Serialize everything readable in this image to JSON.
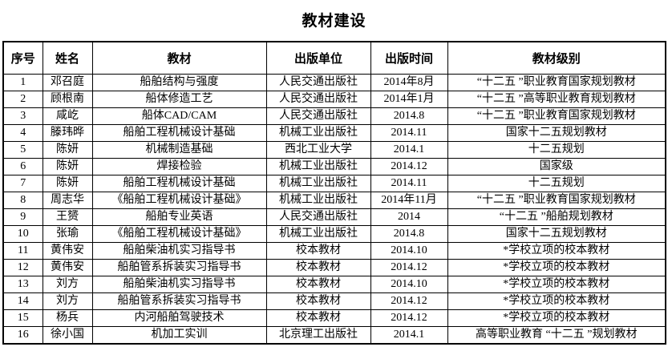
{
  "title": "教材建设",
  "colors": {
    "text": "#000000",
    "border": "#000000",
    "background": "#ffffff"
  },
  "table": {
    "headers": [
      "序号",
      "姓名",
      "教材",
      "出版单位",
      "出版时间",
      "教材级别"
    ],
    "rows": [
      [
        "1",
        "邓召庭",
        "船舶结构与强度",
        "人民交通出版社",
        "2014年8月",
        "“十二五 ”职业教育国家规划教材"
      ],
      [
        "2",
        "顾根南",
        "船体修造工艺",
        "人民交通出版社",
        "2014年1月",
        "“十二五 ”高等职业教育规划教材"
      ],
      [
        "3",
        "咸屹",
        "船体CAD/CAM",
        "人民交通出版社",
        "2014.8",
        "“十二五 ”职业教育国家规划教材"
      ],
      [
        "4",
        "滕玮晔",
        "船舶工程机械设计基础",
        "机械工业出版社",
        "2014.11",
        "国家十二五规划教材"
      ],
      [
        "5",
        "陈妍",
        "机械制造基础",
        "西北工业大学",
        "2014.1",
        "十二五规划"
      ],
      [
        "6",
        "陈妍",
        "焊接检验",
        "机械工业出版社",
        "2014.12",
        "国家级"
      ],
      [
        "7",
        "陈妍",
        "船舶工程机械设计基础",
        "机械工业出版社",
        "2014.11",
        "十二五规划"
      ],
      [
        "8",
        "周志华",
        "《船舶工程机械设计基础》",
        "机械工业出版社",
        "2014年11月",
        "“十二五 ”职业教育国家规划教材"
      ],
      [
        "9",
        "王赟",
        "船舶专业英语",
        "人民交通出版社",
        "2014",
        "“十二五 ”船舶规划教材"
      ],
      [
        "10",
        "张瑜",
        "《船舶工程机械设计基础》",
        "机械工业出版社",
        "2014.8",
        "国家十二五规划教材"
      ],
      [
        "11",
        "黄伟安",
        "船舶柴油机实习指导书",
        "校本教材",
        "2014.10",
        "*学校立项的校本教材"
      ],
      [
        "12",
        "黄伟安",
        "船舶管系拆装实习指导书",
        "校本教材",
        "2014.12",
        "*学校立项的校本教材"
      ],
      [
        "13",
        "刘方",
        "船舶柴油机实习指导书",
        "校本教材",
        "2014.10",
        "*学校立项的校本教材"
      ],
      [
        "14",
        "刘方",
        "船舶管系拆装实习指导书",
        "校本教材",
        "2014.12",
        "*学校立项的校本教材"
      ],
      [
        "15",
        "杨兵",
        "内河船舶驾驶技术",
        "校本教材",
        "2014.12",
        "*学校立项的校本教材"
      ],
      [
        "16",
        "徐小国",
        "机加工实训",
        "北京理工出版社",
        "2014.1",
        "高等职业教育 “十二五 ”规划教材"
      ]
    ]
  }
}
